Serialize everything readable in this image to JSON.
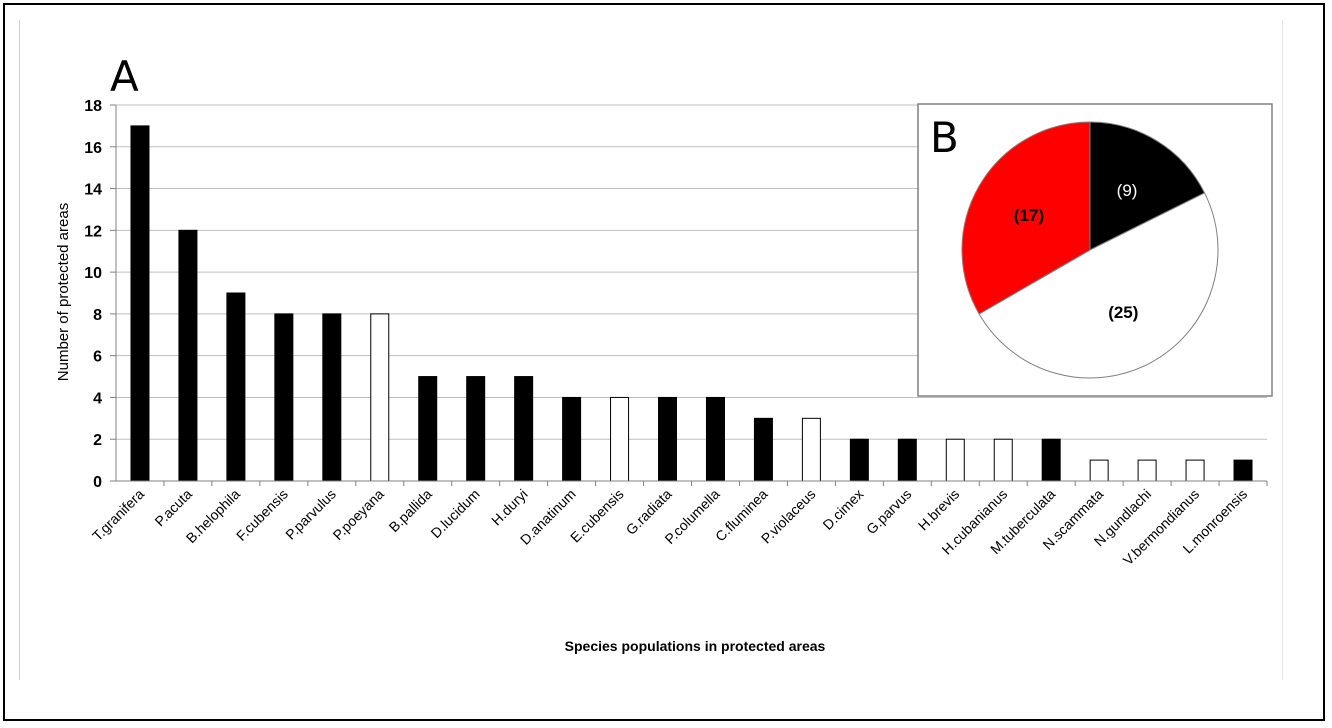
{
  "chart_data": [
    {
      "type": "bar",
      "panel_label": "A",
      "ylabel": "Number of protected areas",
      "xlabel": "Species populations in protected areas",
      "ylim": [
        0,
        18
      ],
      "yticks": [
        0,
        2,
        4,
        6,
        8,
        10,
        12,
        14,
        16,
        18
      ],
      "grid": true,
      "categories": [
        "T.granifera",
        "P.acuta",
        "B.helophila",
        "F.cubensis",
        "P.parvulus",
        "P.poeyana",
        "B.pallida",
        "D.lucidum",
        "H.duryi",
        "D.anatinum",
        "E.cubensis",
        "G.radiata",
        "P.columella",
        "C.fluminea",
        "P.violaceus",
        "D.cimex",
        "G.parvus",
        "H.brevis",
        "H.cubanianus",
        "M.tuberculata",
        "N.scammata",
        "N.gundlachi",
        "V.bermondianus",
        "L.monroensis"
      ],
      "values": [
        17,
        12,
        9,
        8,
        8,
        8,
        5,
        5,
        5,
        4,
        4,
        4,
        4,
        3,
        3,
        2,
        2,
        2,
        2,
        2,
        1,
        1,
        1,
        1
      ],
      "fills": [
        "black",
        "black",
        "black",
        "black",
        "black",
        "white",
        "black",
        "black",
        "black",
        "black",
        "white",
        "black",
        "black",
        "black",
        "white",
        "black",
        "black",
        "white",
        "white",
        "black",
        "white",
        "white",
        "white",
        "black"
      ],
      "colors": {
        "black": "#000000",
        "white": "#ffffff",
        "grid": "#bfbfbf",
        "axis": "#808080"
      }
    },
    {
      "type": "pie",
      "panel_label": "B",
      "slices": [
        {
          "label": "(9)",
          "value": 9,
          "color": "#000000",
          "label_color": "#ffffff"
        },
        {
          "label": "(25)",
          "value": 25,
          "color": "#ffffff",
          "label_color": "#000000"
        },
        {
          "label": "(17)",
          "value": 17,
          "color": "#ff0000",
          "label_color": "#000000"
        }
      ]
    }
  ]
}
